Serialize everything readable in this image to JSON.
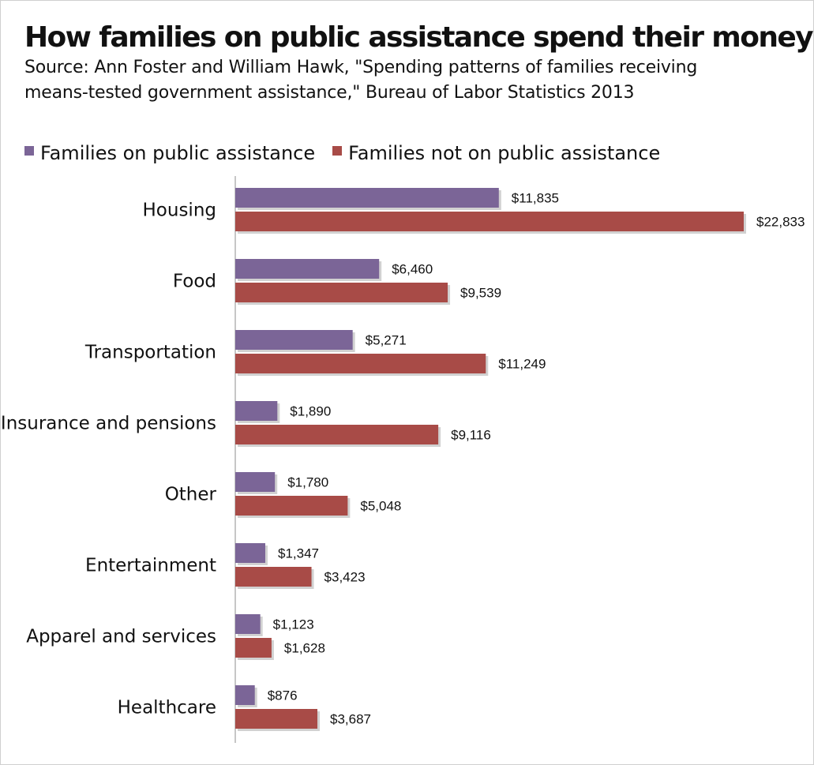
{
  "chart_data": {
    "type": "bar",
    "orientation": "horizontal",
    "title": "How families on public assistance spend their money",
    "subtitle": [
      "Source: Ann Foster and William Hawk, \"Spending patterns of families receiving",
      "means-tested government assistance,\" Bureau of Labor Statistics 2013"
    ],
    "categories": [
      "Housing",
      "Food",
      "Transportation",
      "Insurance and pensions",
      "Other",
      "Entertainment",
      "Apparel and services",
      "Healthcare"
    ],
    "series": [
      {
        "name": "Families on public assistance",
        "color": "#7b6597",
        "values": [
          11835,
          6460,
          5271,
          1890,
          1780,
          1347,
          1123,
          876
        ],
        "labels": [
          "$11,835",
          "$6,460",
          "$5,271",
          "$1,890",
          "$1,780",
          "$1,347",
          "$1,123",
          "$876"
        ]
      },
      {
        "name": "Families not on public assistance",
        "color": "#a84b47",
        "values": [
          22833,
          9539,
          11249,
          9116,
          5048,
          3423,
          1628,
          3687
        ],
        "labels": [
          "$22,833",
          "$9,539",
          "$11,249",
          "$9,116",
          "$5,048",
          "$3,423",
          "$1,628",
          "$3,687"
        ]
      }
    ],
    "xlim": [
      0,
      22833
    ],
    "grid": false,
    "legend_position": "top-left",
    "xlabel": "",
    "ylabel": ""
  }
}
